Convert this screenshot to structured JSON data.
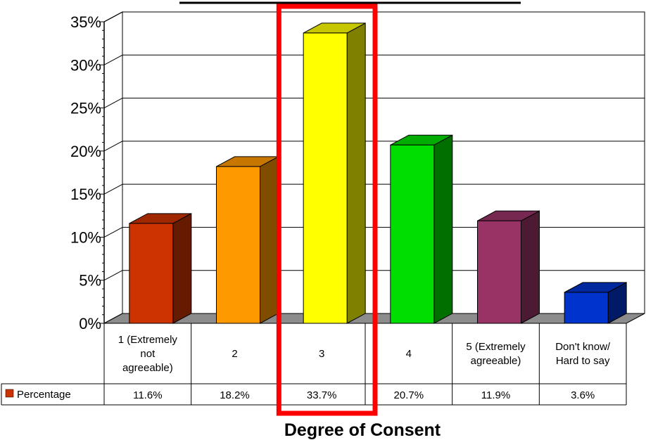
{
  "chart_data": {
    "type": "bar",
    "categories": [
      "1 (Extremely not agreeable)",
      "2",
      "3",
      "4",
      "5 (Extremely agreeable)",
      "Don't know/ Hard to say"
    ],
    "category_lines": [
      [
        "1 (Extremely",
        "not",
        "agreeable)"
      ],
      [
        "2"
      ],
      [
        "3"
      ],
      [
        "4"
      ],
      [
        "5 (Extremely",
        "agreeable)"
      ],
      [
        "Don't know/",
        "Hard to say"
      ]
    ],
    "series": [
      {
        "name": "Percentage",
        "values": [
          11.6,
          18.2,
          33.7,
          20.7,
          11.9,
          3.6
        ],
        "labels": [
          "11.6%",
          "18.2%",
          "33.7%",
          "20.7%",
          "11.9%",
          "3.6%"
        ]
      }
    ],
    "bar_colors": [
      "#CC3300",
      "#FF9900",
      "#FFFF00",
      "#00DD00",
      "#993366",
      "#0033CC"
    ],
    "highlight_color": "#FF0000",
    "highlight_category": "3",
    "xlabel": "Degree of Consent",
    "ylabel": "",
    "ylim": [
      0,
      35
    ],
    "yticks": [
      0,
      5,
      10,
      15,
      20,
      25,
      30,
      35
    ],
    "ytick_labels": [
      "0%",
      "5%",
      "10%",
      "15%",
      "20%",
      "25%",
      "30%",
      "35%"
    ],
    "grid": true,
    "legend": "data-table-left"
  }
}
